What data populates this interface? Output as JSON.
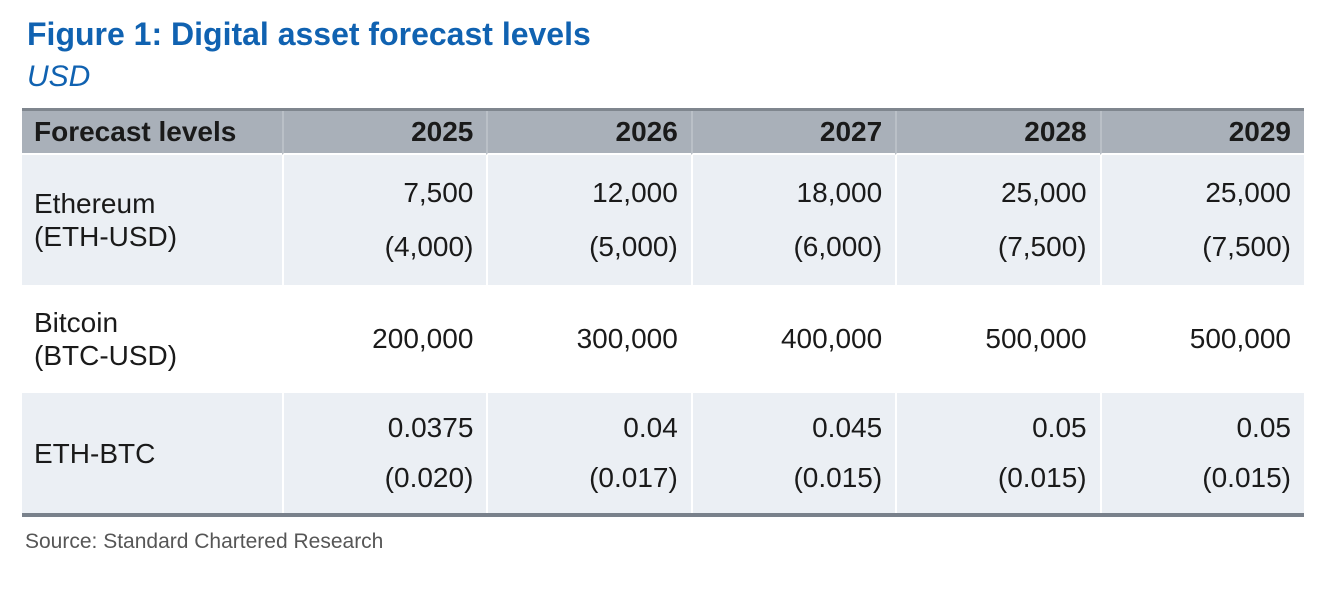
{
  "chart_data": {
    "type": "table",
    "title": "Figure 1: Digital asset forecast levels",
    "subtitle": "USD",
    "source": "Source: Standard Chartered Research",
    "columns": [
      "Forecast levels",
      "2025",
      "2026",
      "2027",
      "2028",
      "2029"
    ],
    "rows": [
      {
        "asset": "Ethereum",
        "ticker": "(ETH-USD)",
        "forecast": [
          "7,500",
          "12,000",
          "18,000",
          "25,000",
          "25,000"
        ],
        "secondary": [
          "(4,000)",
          "(5,000)",
          "(6,000)",
          "(7,500)",
          "(7,500)"
        ]
      },
      {
        "asset": "Bitcoin",
        "ticker": "(BTC-USD)",
        "forecast": [
          "200,000",
          "300,000",
          "400,000",
          "500,000",
          "500,000"
        ],
        "secondary": []
      },
      {
        "asset": "ETH-BTC",
        "forecast": [
          "0.0375",
          "0.04",
          "0.045",
          "0.05",
          "0.05"
        ],
        "secondary": [
          "(0.020)",
          "(0.017)",
          "(0.015)",
          "(0.015)",
          "(0.015)"
        ]
      }
    ],
    "layout": {
      "legend": "none",
      "grid": "off",
      "value_alignment": "right"
    }
  },
  "colors": {
    "accent_blue": "#1062b1",
    "header_background": "#a9b0b9",
    "row_shade": "#ebeff4",
    "table_border": "#79818b",
    "source_text": "#565656",
    "body_text": "#1a1a1a"
  }
}
